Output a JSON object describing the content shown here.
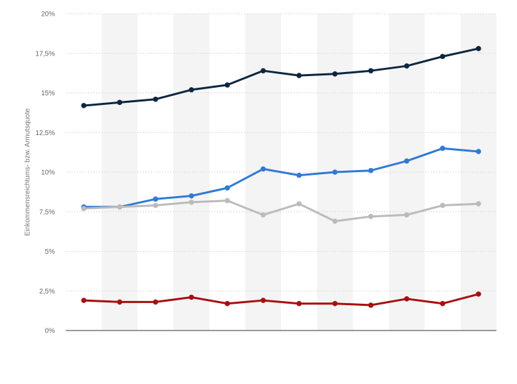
{
  "chart_data": {
    "type": "line",
    "ylabel": "Einkommensreichtums- bzw. Armutsquote",
    "xlabel": "",
    "ylim": [
      0,
      20
    ],
    "yticks": [
      "0%",
      "2,5%",
      "5%",
      "7,5%",
      "10%",
      "12,5%",
      "15%",
      "17,5%",
      "20%"
    ],
    "ytick_values": [
      0,
      2.5,
      5,
      7.5,
      10,
      12.5,
      15,
      17.5,
      20
    ],
    "grid": true,
    "point_count": 12,
    "series": [
      {
        "color": "#0d2640",
        "values": [
          14.2,
          14.4,
          14.6,
          15.2,
          15.5,
          16.4,
          16.1,
          16.2,
          16.4,
          16.7,
          17.3,
          17.8
        ]
      },
      {
        "color": "#2f7ad6",
        "values": [
          7.8,
          7.8,
          8.3,
          8.5,
          9.0,
          10.2,
          9.8,
          10.0,
          10.1,
          10.7,
          11.5,
          11.3
        ]
      },
      {
        "color": "#bbbbbb",
        "values": [
          7.7,
          7.8,
          7.9,
          8.1,
          8.2,
          7.3,
          8.0,
          6.9,
          7.2,
          7.3,
          7.9,
          8.0
        ]
      },
      {
        "color": "#a80f0f",
        "values": [
          1.9,
          1.8,
          1.8,
          2.1,
          1.7,
          1.9,
          1.7,
          1.7,
          1.6,
          2.0,
          1.7,
          2.3
        ]
      }
    ]
  }
}
